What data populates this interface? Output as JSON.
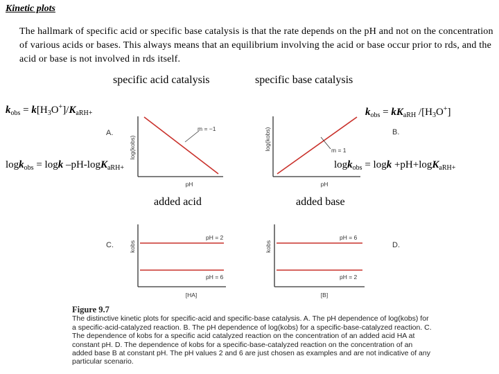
{
  "title": "Kinetic plots",
  "intro": "The hallmark of specific acid or specific base catalysis is that the rate depends on the pH and not on the concentration of various acids or bases. This always means that an equilibrium involving the acid or base occur prior to rds, and the acid or base is not involved in rds itself.",
  "headers": {
    "acid": "specific acid catalysis",
    "base": "specific base catalysis"
  },
  "equations": {
    "acid_rate": {
      "k": "k",
      "obs": "obs",
      "mid": " = ",
      "k2": "k",
      "bracket": "[H",
      "three": "3",
      "o": "O",
      "plus": "+",
      "close": "]/",
      "K": "K",
      "ka_sub": "aRH+"
    },
    "base_rate": {
      "k": "k",
      "obs": "obs",
      "mid": " = ",
      "kK": "kK",
      "ka_sub": "aRH",
      "slash": " /[H",
      "three": "3",
      "o": "O",
      "plus": "+",
      "close": "]"
    },
    "acid_log": {
      "log": "log",
      "k": "k",
      "obs": "obs",
      "mid": " = log",
      "k2": "k",
      "rest": " –pH-log",
      "K": "K",
      "ka_sub": "aRH+"
    },
    "base_log": {
      "log": "log",
      "k": "k",
      "obs": "obs",
      "mid": " = log",
      "k2": "k",
      "rest": " +pH+log",
      "K": "K",
      "ka_sub": "aRH+"
    }
  },
  "sublabels": {
    "acid": "added acid",
    "base": "added base"
  },
  "plots": {
    "A": {
      "letter": "A.",
      "ylabel": "log(kobs)",
      "xlabel": "pH",
      "annotation": "m = −1"
    },
    "B": {
      "letter": "B.",
      "ylabel": "log(kobs)",
      "xlabel": "pH",
      "annotation": "m = 1"
    },
    "C": {
      "letter": "C.",
      "ylabel": "kobs",
      "xlabel": "[HA]",
      "line_top": "pH = 2",
      "line_bottom": "pH = 6"
    },
    "D": {
      "letter": "D.",
      "ylabel": "kobs",
      "xlabel": "[B]",
      "line_top": "pH = 6",
      "line_bottom": "pH = 2"
    }
  },
  "caption": {
    "heading": "Figure 9.7",
    "text": "The distinctive kinetic plots for specific-acid and specific-base catalysis. A. The pH dependence of log(kobs) for a specific-acid-catalyzed reaction. B. The pH dependence of log(kobs) for a specific-base-catalyzed reaction. C. The dependence of kobs for a specific acid catalyzed reaction on the concentration of an added acid HA at constant pH. D. The dependence of kobs for a specific-base-catalyzed reaction on the concentration of an added base B at constant pH. The pH values 2 and 6 are just chosen as examples and are not indicative of any particular scenario."
  },
  "colors": {
    "red_line": "#c9302a",
    "axis": "#333333"
  }
}
